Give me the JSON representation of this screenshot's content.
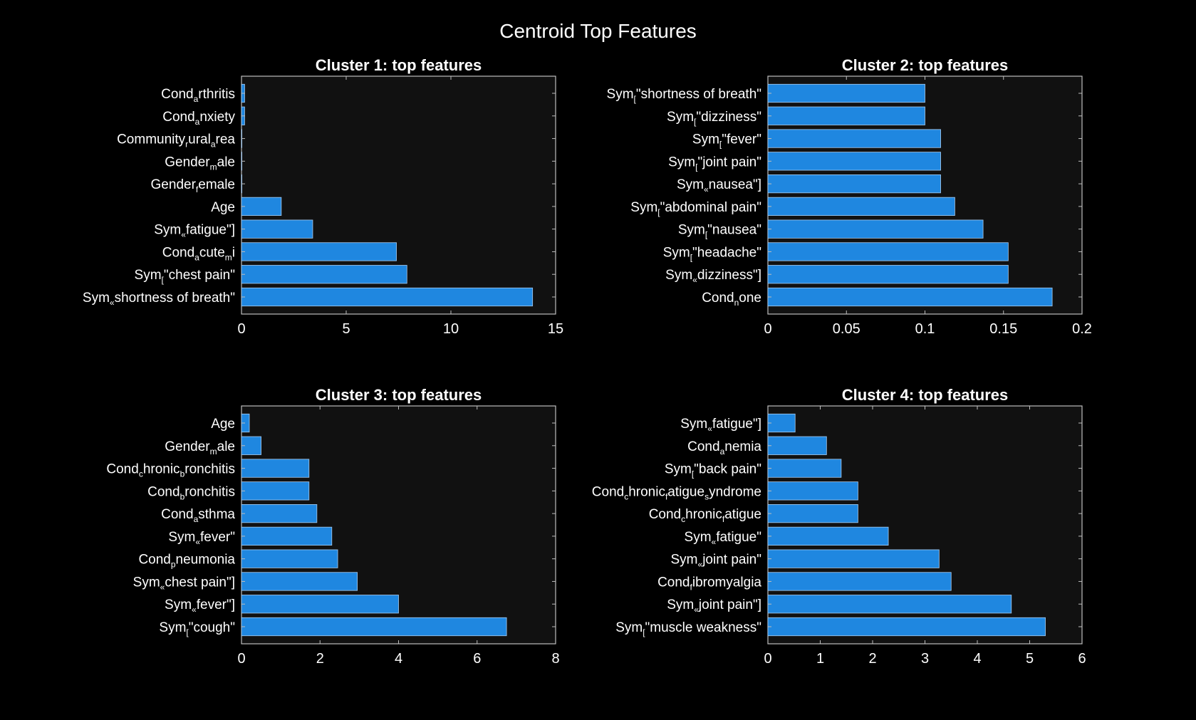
{
  "figure": {
    "title": "Centroid Top Features"
  },
  "colors": {
    "background": "#000000",
    "axes_face": "#111111",
    "bar": "#1f87e0",
    "bar_edge": "#a9cdf0",
    "text": "#ffffff",
    "spine": "#bdbdbd"
  },
  "chart_data": [
    {
      "type": "bar",
      "orientation": "horizontal",
      "title": "Cluster 1: top features",
      "categories": [
        {
          "base": "Sym",
          "sub": "«",
          "rest": "shortness of breath\""
        },
        {
          "base": "Sym",
          "sub": "[",
          "rest": "\"chest pain\""
        },
        {
          "base": "Cond",
          "sub": "a",
          "rest": "cute",
          "sub2": "m",
          "rest2": "i"
        },
        {
          "base": "Sym",
          "sub": "«",
          "rest": "fatigue\"]"
        },
        {
          "base": "Age"
        },
        {
          "base": "Gender",
          "sub": "f",
          "rest": "emale"
        },
        {
          "base": "Gender",
          "sub": "m",
          "rest": "ale"
        },
        {
          "base": "Community",
          "sub": "r",
          "rest": "ural",
          "sub2": "a",
          "rest2": "rea"
        },
        {
          "base": "Cond",
          "sub": "a",
          "rest": "nxiety"
        },
        {
          "base": "Cond",
          "sub": "a",
          "rest": "rthritis"
        }
      ],
      "values": [
        13.9,
        7.9,
        7.4,
        3.4,
        1.9,
        0.02,
        0.02,
        0.02,
        0.15,
        0.15
      ],
      "xlim": [
        0,
        15
      ],
      "xticks": [
        0,
        5,
        10,
        15
      ],
      "xtick_labels": [
        "0",
        "5",
        "10",
        "15"
      ]
    },
    {
      "type": "bar",
      "orientation": "horizontal",
      "title": "Cluster 2: top features",
      "categories": [
        {
          "base": "Cond",
          "sub": "n",
          "rest": "one"
        },
        {
          "base": "Sym",
          "sub": "«",
          "rest": "dizziness\"]"
        },
        {
          "base": "Sym",
          "sub": "[",
          "rest": "\"headache\""
        },
        {
          "base": "Sym",
          "sub": "[",
          "rest": "\"nausea\""
        },
        {
          "base": "Sym",
          "sub": "[",
          "rest": "\"abdominal pain\""
        },
        {
          "base": "Sym",
          "sub": "«",
          "rest": "nausea\"]"
        },
        {
          "base": "Sym",
          "sub": "[",
          "rest": "\"joint pain\""
        },
        {
          "base": "Sym",
          "sub": "[",
          "rest": "\"fever\""
        },
        {
          "base": "Sym",
          "sub": "[",
          "rest": "\"dizziness\""
        },
        {
          "base": "Sym",
          "sub": "[",
          "rest": "\"shortness of breath\""
        }
      ],
      "values": [
        0.181,
        0.153,
        0.153,
        0.137,
        0.119,
        0.11,
        0.11,
        0.11,
        0.1,
        0.1
      ],
      "xlim": [
        0,
        0.2
      ],
      "xticks": [
        0,
        0.05,
        0.1,
        0.15,
        0.2
      ],
      "xtick_labels": [
        "0",
        "0.05",
        "0.1",
        "0.15",
        "0.2"
      ]
    },
    {
      "type": "bar",
      "orientation": "horizontal",
      "title": "Cluster 3: top features",
      "categories": [
        {
          "base": "Sym",
          "sub": "[",
          "rest": "\"cough\""
        },
        {
          "base": "Sym",
          "sub": "«",
          "rest": "fever\"]"
        },
        {
          "base": "Sym",
          "sub": "«",
          "rest": "chest pain\"]"
        },
        {
          "base": "Cond",
          "sub": "p",
          "rest": "neumonia"
        },
        {
          "base": "Sym",
          "sub": "«",
          "rest": "fever\""
        },
        {
          "base": "Cond",
          "sub": "a",
          "rest": "sthma"
        },
        {
          "base": "Cond",
          "sub": "b",
          "rest": "ronchitis"
        },
        {
          "base": "Cond",
          "sub": "c",
          "rest": "hronic",
          "sub2": "b",
          "rest2": "ronchitis"
        },
        {
          "base": "Gender",
          "sub": "m",
          "rest": "ale"
        },
        {
          "base": "Age"
        }
      ],
      "values": [
        6.75,
        4.0,
        2.95,
        2.45,
        2.3,
        1.92,
        1.72,
        1.72,
        0.5,
        0.2
      ],
      "xlim": [
        0,
        8
      ],
      "xticks": [
        0,
        2,
        4,
        6,
        8
      ],
      "xtick_labels": [
        "0",
        "2",
        "4",
        "6",
        "8"
      ]
    },
    {
      "type": "bar",
      "orientation": "horizontal",
      "title": "Cluster 4: top features",
      "categories": [
        {
          "base": "Sym",
          "sub": "[",
          "rest": "\"muscle weakness\""
        },
        {
          "base": "Sym",
          "sub": "«",
          "rest": "joint pain\"]"
        },
        {
          "base": "Cond",
          "sub": "f",
          "rest": "ibromyalgia"
        },
        {
          "base": "Sym",
          "sub": "«",
          "rest": "joint pain\""
        },
        {
          "base": "Sym",
          "sub": "«",
          "rest": "fatigue\""
        },
        {
          "base": "Cond",
          "sub": "c",
          "rest": "hronic",
          "sub2": "f",
          "rest2": "atigue"
        },
        {
          "base": "Cond",
          "sub": "c",
          "rest": "hronic",
          "sub2": "f",
          "rest2": "atigue",
          "sub3": "s",
          "rest3": "yndrome"
        },
        {
          "base": "Sym",
          "sub": "[",
          "rest": "\"back pain\""
        },
        {
          "base": "Cond",
          "sub": "a",
          "rest": "nemia"
        },
        {
          "base": "Sym",
          "sub": "«",
          "rest": "fatigue\"]"
        }
      ],
      "values": [
        5.3,
        4.65,
        3.5,
        3.27,
        2.3,
        1.72,
        1.72,
        1.4,
        1.12,
        0.52
      ],
      "xlim": [
        0,
        6
      ],
      "xticks": [
        0,
        1,
        2,
        3,
        4,
        5,
        6
      ],
      "xtick_labels": [
        "0",
        "1",
        "2",
        "3",
        "4",
        "5",
        "6"
      ]
    }
  ]
}
